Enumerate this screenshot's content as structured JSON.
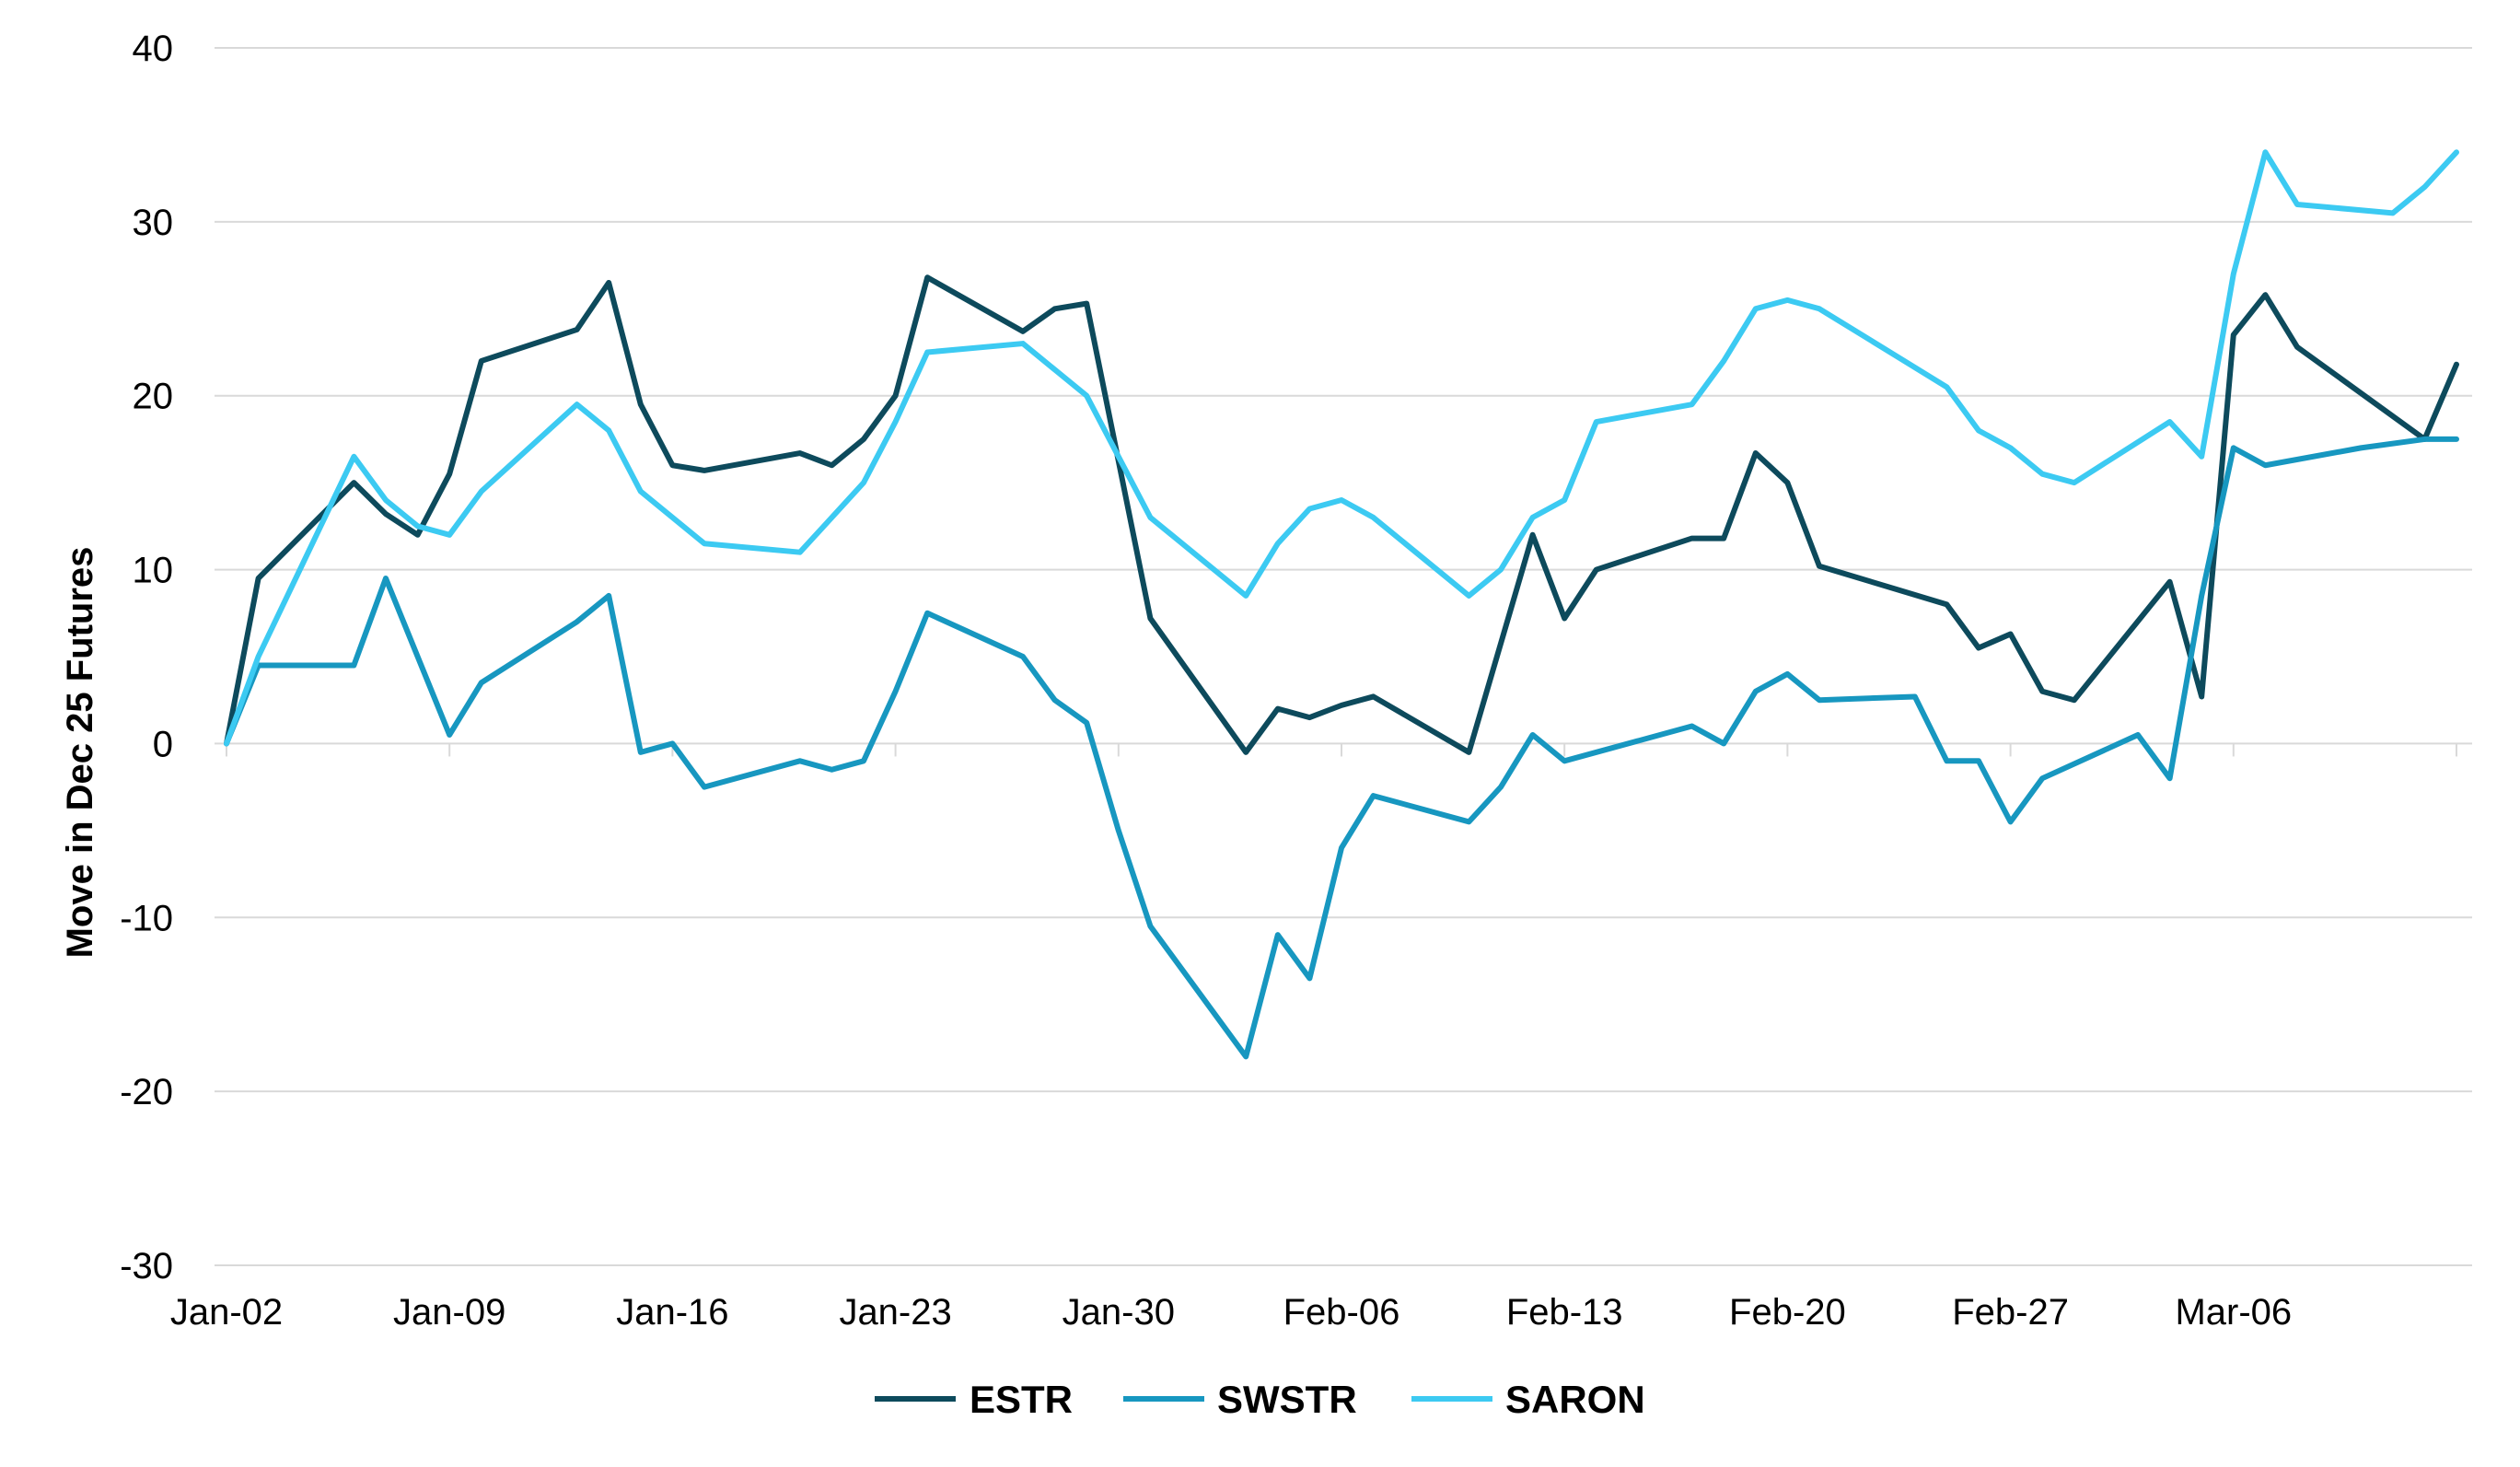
{
  "chart_data": {
    "type": "line",
    "title": "",
    "xlabel": "",
    "ylabel": "Move in Dec 25 Futures",
    "ylim": [
      -30,
      40
    ],
    "yticks": [
      40,
      30,
      20,
      10,
      0,
      -10,
      -20,
      -30
    ],
    "grid": true,
    "legend_position": "bottom-center",
    "x_tick_labels": [
      "Jan-02",
      "Jan-09",
      "Jan-16",
      "Jan-23",
      "Jan-30",
      "Feb-06",
      "Feb-13",
      "Feb-20",
      "Feb-27",
      "Mar-06"
    ],
    "x_tick_indices": [
      0,
      7,
      14,
      21,
      28,
      35,
      42,
      49,
      56,
      63
    ],
    "x_count": 70,
    "series": [
      {
        "name": "ESTR",
        "color": "#0d4a5c",
        "points": [
          [
            0,
            0
          ],
          [
            1,
            9.5
          ],
          [
            4,
            15
          ],
          [
            5,
            13.2
          ],
          [
            6,
            12
          ],
          [
            7,
            15.5
          ],
          [
            8,
            22
          ],
          [
            11,
            23.8
          ],
          [
            12,
            26.5
          ],
          [
            13,
            19.5
          ],
          [
            14,
            16
          ],
          [
            15,
            15.7
          ],
          [
            18,
            16.7
          ],
          [
            19,
            16
          ],
          [
            20,
            17.5
          ],
          [
            21,
            20
          ],
          [
            22,
            26.8
          ],
          [
            25,
            23.7
          ],
          [
            26,
            25
          ],
          [
            27,
            25.3
          ],
          [
            29,
            7.2
          ],
          [
            32,
            -0.5
          ],
          [
            33,
            2
          ],
          [
            34,
            1.5
          ],
          [
            35,
            2.2
          ],
          [
            36,
            2.7
          ],
          [
            39,
            -0.5
          ],
          [
            41,
            12
          ],
          [
            42,
            7.2
          ],
          [
            43,
            10
          ],
          [
            46,
            11.8
          ],
          [
            47,
            11.8
          ],
          [
            48,
            16.7
          ],
          [
            49,
            15
          ],
          [
            50,
            10.2
          ],
          [
            54,
            8
          ],
          [
            55,
            5.5
          ],
          [
            56,
            6.3
          ],
          [
            57,
            3
          ],
          [
            58,
            2.5
          ],
          [
            61,
            9.3
          ],
          [
            62,
            2.7
          ],
          [
            63,
            23.5
          ],
          [
            64,
            25.8
          ],
          [
            65,
            22.8
          ],
          [
            69,
            17.5
          ],
          [
            70,
            21.8
          ]
        ]
      },
      {
        "name": "SWSTR",
        "color": "#1797c0",
        "points": [
          [
            0,
            0
          ],
          [
            1,
            4.5
          ],
          [
            4,
            4.5
          ],
          [
            5,
            9.5
          ],
          [
            7,
            0.5
          ],
          [
            8,
            3.5
          ],
          [
            11,
            7
          ],
          [
            12,
            8.5
          ],
          [
            13,
            -0.5
          ],
          [
            14,
            0
          ],
          [
            15,
            -2.5
          ],
          [
            18,
            -1
          ],
          [
            19,
            -1.5
          ],
          [
            20,
            -1
          ],
          [
            21,
            3
          ],
          [
            22,
            7.5
          ],
          [
            25,
            5
          ],
          [
            26,
            2.5
          ],
          [
            27,
            1.2
          ],
          [
            28,
            -5
          ],
          [
            29,
            -10.5
          ],
          [
            32,
            -18
          ],
          [
            33,
            -11
          ],
          [
            34,
            -13.5
          ],
          [
            35,
            -6
          ],
          [
            36,
            -3
          ],
          [
            39,
            -4.5
          ],
          [
            40,
            -2.5
          ],
          [
            41,
            0.5
          ],
          [
            42,
            -1
          ],
          [
            46,
            1
          ],
          [
            47,
            0
          ],
          [
            48,
            3
          ],
          [
            49,
            4
          ],
          [
            50,
            2.5
          ],
          [
            53,
            2.7
          ],
          [
            54,
            -1
          ],
          [
            55,
            -1
          ],
          [
            56,
            -4.5
          ],
          [
            57,
            -2
          ],
          [
            60,
            0.5
          ],
          [
            61,
            -2
          ],
          [
            62,
            8.5
          ],
          [
            63,
            17
          ],
          [
            64,
            16
          ],
          [
            67,
            17
          ],
          [
            69,
            17.5
          ],
          [
            70,
            17.5
          ]
        ]
      },
      {
        "name": "SARON",
        "color": "#3ccaf2",
        "points": [
          [
            0,
            0
          ],
          [
            1,
            5
          ],
          [
            4,
            16.5
          ],
          [
            5,
            14
          ],
          [
            6,
            12.5
          ],
          [
            7,
            12
          ],
          [
            8,
            14.5
          ],
          [
            11,
            19.5
          ],
          [
            12,
            18
          ],
          [
            13,
            14.5
          ],
          [
            15,
            11.5
          ],
          [
            18,
            11
          ],
          [
            20,
            15
          ],
          [
            21,
            18.5
          ],
          [
            22,
            22.5
          ],
          [
            25,
            23
          ],
          [
            27,
            20
          ],
          [
            29,
            13
          ],
          [
            32,
            8.5
          ],
          [
            33,
            11.5
          ],
          [
            34,
            13.5
          ],
          [
            35,
            14
          ],
          [
            36,
            13
          ],
          [
            39,
            8.5
          ],
          [
            40,
            10
          ],
          [
            41,
            13
          ],
          [
            42,
            14
          ],
          [
            43,
            18.5
          ],
          [
            46,
            19.5
          ],
          [
            47,
            22
          ],
          [
            48,
            25
          ],
          [
            49,
            25.5
          ],
          [
            50,
            25
          ],
          [
            54,
            20.5
          ],
          [
            55,
            18
          ],
          [
            56,
            17
          ],
          [
            57,
            15.5
          ],
          [
            58,
            15
          ],
          [
            61,
            18.5
          ],
          [
            62,
            16.5
          ],
          [
            63,
            27
          ],
          [
            64,
            34
          ],
          [
            65,
            31
          ],
          [
            68,
            30.5
          ],
          [
            69,
            32
          ],
          [
            70,
            34
          ]
        ]
      }
    ]
  }
}
